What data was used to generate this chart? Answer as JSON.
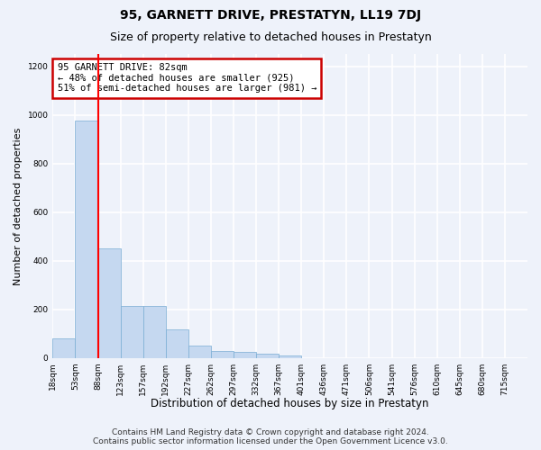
{
  "title_line1": "95, GARNETT DRIVE, PRESTATYN, LL19 7DJ",
  "title_line2": "Size of property relative to detached houses in Prestatyn",
  "xlabel": "Distribution of detached houses by size in Prestatyn",
  "ylabel": "Number of detached properties",
  "bar_values": [
    80,
    975,
    450,
    215,
    215,
    120,
    50,
    28,
    25,
    20,
    12,
    0,
    0,
    0,
    0,
    0,
    0,
    0,
    0,
    0
  ],
  "bar_labels": [
    "18sqm",
    "53sqm",
    "88sqm",
    "123sqm",
    "157sqm",
    "192sqm",
    "227sqm",
    "262sqm",
    "297sqm",
    "332sqm",
    "367sqm",
    "401sqm",
    "436sqm",
    "471sqm",
    "506sqm",
    "541sqm",
    "576sqm",
    "610sqm",
    "645sqm",
    "680sqm",
    "715sqm"
  ],
  "bar_color": "#c5d8f0",
  "bar_edge_color": "#7aadd4",
  "red_line_x": 2.0,
  "ylim": [
    0,
    1250
  ],
  "yticks": [
    0,
    200,
    400,
    600,
    800,
    1000,
    1200
  ],
  "annotation_text": "95 GARNETT DRIVE: 82sqm\n← 48% of detached houses are smaller (925)\n51% of semi-detached houses are larger (981) →",
  "annotation_box_color": "#ffffff",
  "annotation_box_edge": "#cc0000",
  "footer_line1": "Contains HM Land Registry data © Crown copyright and database right 2024.",
  "footer_line2": "Contains public sector information licensed under the Open Government Licence v3.0.",
  "background_color": "#eef2fa",
  "grid_color": "#ffffff",
  "title1_fontsize": 10,
  "title2_fontsize": 9,
  "xlabel_fontsize": 8.5,
  "ylabel_fontsize": 8,
  "tick_fontsize": 6.5,
  "annotation_fontsize": 7.5,
  "footer_fontsize": 6.5
}
